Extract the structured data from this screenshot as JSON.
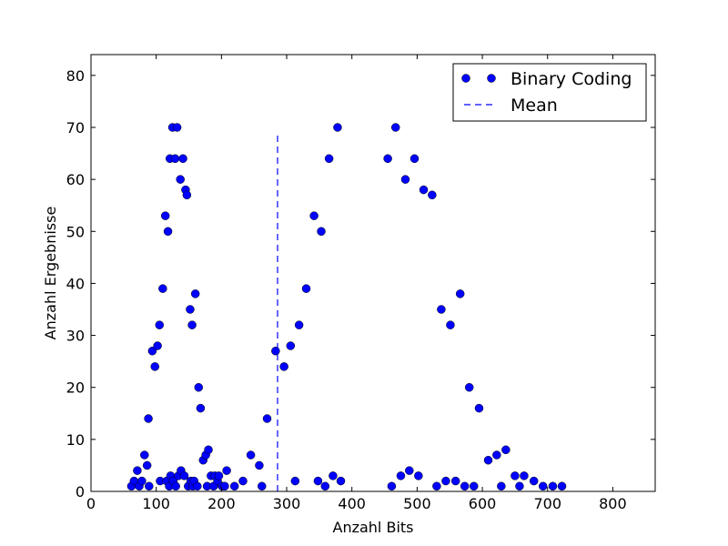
{
  "chart_data": {
    "type": "scatter",
    "xlabel": "Anzahl Bits",
    "ylabel": "Anzahl Ergebnisse",
    "xlim": [
      0,
      865
    ],
    "ylim": [
      0,
      84
    ],
    "xticks": [
      0,
      100,
      200,
      300,
      400,
      500,
      600,
      700,
      800
    ],
    "yticks": [
      0,
      10,
      20,
      30,
      40,
      50,
      60,
      70,
      80
    ],
    "legend_position": "top-right",
    "series": [
      {
        "name": "Binary Coding",
        "kind": "scatter",
        "color": "#0000ff",
        "points": [
          [
            62,
            1
          ],
          [
            66,
            2
          ],
          [
            71,
            4
          ],
          [
            74,
            1
          ],
          [
            78,
            2
          ],
          [
            82,
            7
          ],
          [
            86,
            5
          ],
          [
            88,
            14
          ],
          [
            89,
            1
          ],
          [
            94,
            27
          ],
          [
            98,
            24
          ],
          [
            102,
            28
          ],
          [
            105,
            32
          ],
          [
            106,
            2
          ],
          [
            110,
            39
          ],
          [
            114,
            53
          ],
          [
            116,
            2
          ],
          [
            118,
            50
          ],
          [
            120,
            1
          ],
          [
            121,
            64
          ],
          [
            122,
            3
          ],
          [
            125,
            70
          ],
          [
            126,
            2
          ],
          [
            129,
            64
          ],
          [
            130,
            1
          ],
          [
            132,
            70
          ],
          [
            134,
            3
          ],
          [
            137,
            60
          ],
          [
            138,
            4
          ],
          [
            141,
            64
          ],
          [
            143,
            3
          ],
          [
            145,
            58
          ],
          [
            147,
            57
          ],
          [
            149,
            1
          ],
          [
            152,
            35
          ],
          [
            153,
            2
          ],
          [
            155,
            32
          ],
          [
            156,
            1
          ],
          [
            158,
            2
          ],
          [
            160,
            38
          ],
          [
            163,
            1
          ],
          [
            165,
            20
          ],
          [
            168,
            16
          ],
          [
            172,
            6
          ],
          [
            176,
            7
          ],
          [
            178,
            1
          ],
          [
            180,
            8
          ],
          [
            184,
            3
          ],
          [
            188,
            1
          ],
          [
            190,
            3
          ],
          [
            194,
            2
          ],
          [
            196,
            3
          ],
          [
            201,
            1
          ],
          [
            205,
            1
          ],
          [
            208,
            4
          ],
          [
            220,
            1
          ],
          [
            233,
            2
          ],
          [
            245,
            7
          ],
          [
            258,
            5
          ],
          [
            262,
            1
          ],
          [
            270,
            14
          ],
          [
            283,
            27
          ],
          [
            296,
            24
          ],
          [
            306,
            28
          ],
          [
            313,
            2
          ],
          [
            319,
            32
          ],
          [
            330,
            39
          ],
          [
            342,
            53
          ],
          [
            348,
            2
          ],
          [
            353,
            50
          ],
          [
            359,
            1
          ],
          [
            365,
            64
          ],
          [
            371,
            3
          ],
          [
            378,
            70
          ],
          [
            383,
            2
          ],
          [
            455,
            64
          ],
          [
            461,
            1
          ],
          [
            467,
            70
          ],
          [
            475,
            3
          ],
          [
            482,
            60
          ],
          [
            488,
            4
          ],
          [
            496,
            64
          ],
          [
            502,
            3
          ],
          [
            510,
            58
          ],
          [
            523,
            57
          ],
          [
            530,
            1
          ],
          [
            537,
            35
          ],
          [
            544,
            2
          ],
          [
            551,
            32
          ],
          [
            559,
            2
          ],
          [
            566,
            38
          ],
          [
            573,
            1
          ],
          [
            580,
            20
          ],
          [
            587,
            1
          ],
          [
            595,
            16
          ],
          [
            609,
            6
          ],
          [
            622,
            7
          ],
          [
            629,
            1
          ],
          [
            636,
            8
          ],
          [
            650,
            3
          ],
          [
            657,
            1
          ],
          [
            664,
            3
          ],
          [
            679,
            2
          ],
          [
            693,
            1
          ],
          [
            708,
            1
          ],
          [
            722,
            1
          ]
        ]
      },
      {
        "name": "Mean",
        "kind": "vline",
        "color": "#0000ff",
        "x": 286,
        "y_range": [
          0,
          69
        ]
      }
    ]
  }
}
